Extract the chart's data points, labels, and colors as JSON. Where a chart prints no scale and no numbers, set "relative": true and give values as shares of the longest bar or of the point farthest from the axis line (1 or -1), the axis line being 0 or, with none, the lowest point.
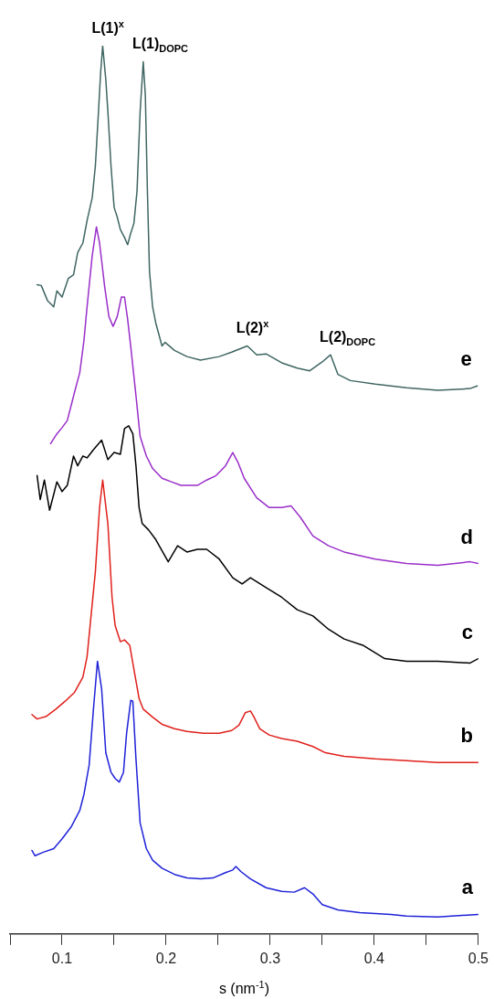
{
  "chart_data": {
    "type": "line",
    "relative": true,
    "xlabel": "s (nm$^{-1}$)",
    "xlim": [
      0.05,
      0.5
    ],
    "xticks": [
      {
        "value": 0.05,
        "label": null
      },
      0.1,
      {
        "value": 0.15,
        "label": null
      },
      0.2,
      {
        "value": 0.25,
        "label": null
      },
      0.3,
      {
        "value": 0.35,
        "label": null
      },
      0.4,
      {
        "value": 0.45,
        "label": null
      },
      0.5
    ],
    "annotations": [
      {
        "text": "L(1)$^{x}$",
        "x": 0.139,
        "y": 1.0
      },
      {
        "text": "L(1)$_{DOPC}$",
        "x": 0.178,
        "y": 0.982
      },
      {
        "text": "L(2)$^{x}$",
        "x": 0.278,
        "y": 0.662
      },
      {
        "text": "L(2)$_{DOPC}$",
        "x": 0.358,
        "y": 0.652
      }
    ],
    "series": [
      {
        "name": "a",
        "color": "#1f22d8",
        "x": [
          0.071,
          0.074,
          0.082,
          0.092,
          0.1,
          0.109,
          0.117,
          0.121,
          0.126,
          0.13,
          0.134,
          0.138,
          0.142,
          0.147,
          0.151,
          0.155,
          0.159,
          0.162,
          0.166,
          0.168,
          0.171,
          0.175,
          0.181,
          0.187,
          0.196,
          0.208,
          0.22,
          0.233,
          0.245,
          0.257,
          0.264,
          0.267,
          0.272,
          0.281,
          0.296,
          0.311,
          0.323,
          0.333,
          0.341,
          0.35,
          0.365,
          0.386,
          0.416,
          0.431,
          0.461,
          0.5
        ],
        "values": [
          0.094,
          0.088,
          0.092,
          0.096,
          0.107,
          0.121,
          0.139,
          0.157,
          0.19,
          0.251,
          0.307,
          0.276,
          0.204,
          0.182,
          0.175,
          0.171,
          0.182,
          0.226,
          0.263,
          0.262,
          0.197,
          0.125,
          0.096,
          0.083,
          0.074,
          0.067,
          0.063,
          0.062,
          0.063,
          0.069,
          0.072,
          0.076,
          0.07,
          0.062,
          0.052,
          0.048,
          0.047,
          0.052,
          0.045,
          0.033,
          0.027,
          0.024,
          0.022,
          0.02,
          0.019,
          0.022
        ]
      },
      {
        "name": "b",
        "color": "#e0201b",
        "x": [
          0.071,
          0.076,
          0.085,
          0.094,
          0.103,
          0.112,
          0.12,
          0.124,
          0.132,
          0.136,
          0.139,
          0.144,
          0.148,
          0.151,
          0.156,
          0.16,
          0.165,
          0.169,
          0.174,
          0.178,
          0.187,
          0.196,
          0.208,
          0.22,
          0.236,
          0.251,
          0.263,
          0.27,
          0.276,
          0.281,
          0.284,
          0.29,
          0.299,
          0.311,
          0.326,
          0.341,
          0.353,
          0.371,
          0.401,
          0.431,
          0.461,
          0.5
        ],
        "values": [
          0.247,
          0.242,
          0.245,
          0.253,
          0.262,
          0.272,
          0.289,
          0.312,
          0.408,
          0.48,
          0.511,
          0.462,
          0.379,
          0.347,
          0.329,
          0.331,
          0.325,
          0.298,
          0.265,
          0.253,
          0.244,
          0.236,
          0.231,
          0.228,
          0.226,
          0.226,
          0.229,
          0.235,
          0.249,
          0.251,
          0.245,
          0.231,
          0.224,
          0.22,
          0.217,
          0.211,
          0.204,
          0.2,
          0.197,
          0.195,
          0.193,
          0.193
        ]
      },
      {
        "name": "c",
        "color": "#000000",
        "x": [
          0.076,
          0.079,
          0.083,
          0.088,
          0.092,
          0.095,
          0.1,
          0.105,
          0.111,
          0.115,
          0.12,
          0.124,
          0.13,
          0.138,
          0.144,
          0.15,
          0.156,
          0.16,
          0.164,
          0.168,
          0.171,
          0.174,
          0.177,
          0.183,
          0.19,
          0.202,
          0.211,
          0.22,
          0.23,
          0.239,
          0.251,
          0.264,
          0.273,
          0.281,
          0.296,
          0.311,
          0.326,
          0.341,
          0.356,
          0.371,
          0.389,
          0.41,
          0.431,
          0.461,
          0.492,
          0.5
        ],
        "values": [
          0.516,
          0.489,
          0.511,
          0.477,
          0.495,
          0.509,
          0.498,
          0.505,
          0.538,
          0.527,
          0.538,
          0.536,
          0.545,
          0.556,
          0.534,
          0.542,
          0.54,
          0.569,
          0.572,
          0.563,
          0.527,
          0.48,
          0.462,
          0.455,
          0.444,
          0.419,
          0.437,
          0.43,
          0.433,
          0.433,
          0.422,
          0.401,
          0.394,
          0.401,
          0.39,
          0.379,
          0.365,
          0.358,
          0.343,
          0.332,
          0.325,
          0.31,
          0.307,
          0.307,
          0.305,
          0.31
        ]
      },
      {
        "name": "d",
        "color": "#9a2fc9",
        "x": [
          0.089,
          0.095,
          0.1,
          0.105,
          0.112,
          0.117,
          0.121,
          0.124,
          0.129,
          0.133,
          0.136,
          0.141,
          0.145,
          0.149,
          0.153,
          0.157,
          0.16,
          0.163,
          0.166,
          0.171,
          0.175,
          0.181,
          0.187,
          0.196,
          0.205,
          0.214,
          0.23,
          0.239,
          0.248,
          0.257,
          0.264,
          0.269,
          0.275,
          0.287,
          0.299,
          0.311,
          0.32,
          0.329,
          0.341,
          0.356,
          0.371,
          0.401,
          0.431,
          0.461,
          0.492,
          0.5
        ],
        "values": [
          0.552,
          0.563,
          0.57,
          0.578,
          0.61,
          0.632,
          0.668,
          0.706,
          0.764,
          0.796,
          0.778,
          0.728,
          0.695,
          0.684,
          0.695,
          0.717,
          0.717,
          0.692,
          0.661,
          0.606,
          0.56,
          0.538,
          0.524,
          0.513,
          0.509,
          0.505,
          0.505,
          0.511,
          0.516,
          0.527,
          0.542,
          0.531,
          0.513,
          0.491,
          0.48,
          0.48,
          0.482,
          0.469,
          0.448,
          0.437,
          0.43,
          0.422,
          0.417,
          0.415,
          0.419,
          0.417
        ]
      },
      {
        "name": "e",
        "color": "#3f6663",
        "x": [
          0.076,
          0.08,
          0.086,
          0.092,
          0.095,
          0.1,
          0.106,
          0.111,
          0.115,
          0.12,
          0.124,
          0.129,
          0.132,
          0.135,
          0.137,
          0.139,
          0.142,
          0.144,
          0.147,
          0.15,
          0.153,
          0.156,
          0.16,
          0.163,
          0.166,
          0.169,
          0.172,
          0.175,
          0.178,
          0.18,
          0.182,
          0.184,
          0.187,
          0.19,
          0.196,
          0.199,
          0.208,
          0.22,
          0.233,
          0.251,
          0.263,
          0.278,
          0.287,
          0.296,
          0.311,
          0.326,
          0.338,
          0.35,
          0.358,
          0.365,
          0.377,
          0.401,
          0.431,
          0.461,
          0.492,
          0.499
        ],
        "values": [
          0.731,
          0.73,
          0.713,
          0.706,
          0.724,
          0.717,
          0.738,
          0.742,
          0.767,
          0.778,
          0.803,
          0.829,
          0.865,
          0.926,
          0.969,
          1.0,
          0.962,
          0.926,
          0.865,
          0.818,
          0.807,
          0.793,
          0.784,
          0.776,
          0.789,
          0.8,
          0.836,
          0.926,
          0.982,
          0.944,
          0.836,
          0.746,
          0.706,
          0.688,
          0.662,
          0.666,
          0.657,
          0.65,
          0.646,
          0.65,
          0.655,
          0.662,
          0.652,
          0.653,
          0.643,
          0.637,
          0.634,
          0.644,
          0.652,
          0.63,
          0.623,
          0.619,
          0.615,
          0.612,
          0.614,
          0.617
        ]
      }
    ]
  }
}
